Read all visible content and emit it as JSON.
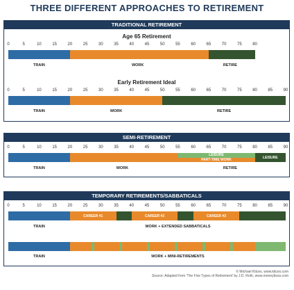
{
  "title": "THREE DIFFERENT APPROACHES TO RETIREMENT",
  "colors": {
    "navy": "#1f3a5a",
    "train": "#2e6ca6",
    "work": "#e88a2c",
    "retire": "#34542f",
    "leisure": "#7fb870"
  },
  "panels": [
    {
      "header": "TRADITIONAL RETIREMENT"
    },
    {
      "header": "SEMI-RETIREMENT"
    },
    {
      "header": "TEMPORARY RETIREMENTS/SABBATICALS"
    }
  ],
  "chart_data": [
    {
      "type": "bar",
      "title": "Age 65 Retirement",
      "ticks": [
        "0",
        "5",
        "10",
        "15",
        "20",
        "25",
        "30",
        "35",
        "40",
        "45",
        "50",
        "55",
        "60",
        "65",
        "70",
        "75",
        "80"
      ],
      "xlim": [
        0,
        80
      ],
      "segments": [
        {
          "start": 0,
          "end": 20,
          "color": "train",
          "text": ""
        },
        {
          "start": 20,
          "end": 65,
          "color": "work",
          "text": ""
        },
        {
          "start": 65,
          "end": 80,
          "color": "retire",
          "text": ""
        }
      ],
      "labels": [
        {
          "x": 10,
          "text": "TRAIN"
        },
        {
          "x": 42,
          "text": "WORK"
        },
        {
          "x": 72,
          "text": "RETIRE"
        }
      ]
    },
    {
      "type": "bar",
      "title": "Early Retirement Ideal",
      "ticks": [
        "0",
        "5",
        "10",
        "15",
        "20",
        "25",
        "30",
        "35",
        "40",
        "45",
        "50",
        "55",
        "60",
        "65",
        "70",
        "75",
        "80",
        "85",
        "90"
      ],
      "xlim": [
        0,
        90
      ],
      "segments": [
        {
          "start": 0,
          "end": 20,
          "color": "train",
          "text": ""
        },
        {
          "start": 20,
          "end": 50,
          "color": "work",
          "text": ""
        },
        {
          "start": 50,
          "end": 90,
          "color": "retire",
          "text": ""
        }
      ],
      "labels": [
        {
          "x": 10,
          "text": "TRAIN"
        },
        {
          "x": 35,
          "text": "WORK"
        },
        {
          "x": 70,
          "text": "RETIRE"
        }
      ]
    },
    {
      "type": "bar",
      "title": "",
      "ticks": [
        "0",
        "5",
        "10",
        "15",
        "20",
        "25",
        "30",
        "35",
        "40",
        "45",
        "50",
        "55",
        "60",
        "65",
        "70",
        "75",
        "80",
        "85",
        "90"
      ],
      "xlim": [
        0,
        90
      ],
      "segments": [
        {
          "start": 0,
          "end": 20,
          "color": "train",
          "text": ""
        },
        {
          "start": 20,
          "end": 55,
          "color": "work",
          "text": ""
        },
        {
          "start": 55,
          "end": 80,
          "color": "leisure",
          "text": "LEISURE",
          "half": "top"
        },
        {
          "start": 55,
          "end": 80,
          "color": "work",
          "text": "PART-TIME WORK",
          "half": "bottom"
        },
        {
          "start": 80,
          "end": 90,
          "color": "retire",
          "text": "LEISURE"
        }
      ],
      "labels": [
        {
          "x": 10,
          "text": "TRAIN"
        },
        {
          "x": 37,
          "text": "WORK"
        },
        {
          "x": 72,
          "text": "RETIRE"
        }
      ]
    },
    {
      "type": "bar",
      "title": "",
      "ticks": [
        "0",
        "5",
        "10",
        "15",
        "20",
        "25",
        "30",
        "35",
        "40",
        "45",
        "50",
        "55",
        "60",
        "65",
        "70",
        "75",
        "80",
        "85",
        "90"
      ],
      "xlim": [
        0,
        90
      ],
      "segments": [
        {
          "start": 0,
          "end": 20,
          "color": "train",
          "text": ""
        },
        {
          "start": 20,
          "end": 35,
          "color": "work",
          "text": "CAREER #1"
        },
        {
          "start": 35,
          "end": 40,
          "color": "retire",
          "text": ""
        },
        {
          "start": 40,
          "end": 55,
          "color": "work",
          "text": "CAREER #2"
        },
        {
          "start": 55,
          "end": 60,
          "color": "retire",
          "text": ""
        },
        {
          "start": 60,
          "end": 75,
          "color": "work",
          "text": "CAREER #3"
        },
        {
          "start": 75,
          "end": 90,
          "color": "retire",
          "text": ""
        }
      ],
      "labels": [
        {
          "x": 10,
          "text": "TRAIN"
        },
        {
          "x": 55,
          "text": "WORK + EXTENDED SABBATICALS"
        }
      ]
    },
    {
      "type": "bar",
      "title": "",
      "ticks": [],
      "xlim": [
        0,
        90
      ],
      "segments": [
        {
          "start": 0,
          "end": 20,
          "color": "train",
          "text": ""
        },
        {
          "start": 20,
          "end": 27,
          "color": "work",
          "text": ""
        },
        {
          "start": 27,
          "end": 28,
          "color": "leisure",
          "text": ""
        },
        {
          "start": 28,
          "end": 36,
          "color": "work",
          "text": ""
        },
        {
          "start": 36,
          "end": 37,
          "color": "leisure",
          "text": ""
        },
        {
          "start": 37,
          "end": 45,
          "color": "work",
          "text": ""
        },
        {
          "start": 45,
          "end": 46,
          "color": "leisure",
          "text": ""
        },
        {
          "start": 46,
          "end": 54,
          "color": "work",
          "text": ""
        },
        {
          "start": 54,
          "end": 55,
          "color": "leisure",
          "text": ""
        },
        {
          "start": 55,
          "end": 63,
          "color": "work",
          "text": ""
        },
        {
          "start": 63,
          "end": 64,
          "color": "leisure",
          "text": ""
        },
        {
          "start": 64,
          "end": 72,
          "color": "work",
          "text": ""
        },
        {
          "start": 72,
          "end": 73,
          "color": "leisure",
          "text": ""
        },
        {
          "start": 73,
          "end": 80,
          "color": "work",
          "text": ""
        },
        {
          "start": 80,
          "end": 90,
          "color": "leisure",
          "text": ""
        }
      ],
      "labels": [
        {
          "x": 10,
          "text": "TRAIN"
        },
        {
          "x": 55,
          "text": "WORK + MINI-RETIREMENTS"
        }
      ]
    }
  ],
  "footer": {
    "credit": "© Michael Kitces, www.kitces.com",
    "source": "Source: Adapted from 'The Five Types of Retirement' by J.D. Roth, www.moneyboss.com"
  }
}
